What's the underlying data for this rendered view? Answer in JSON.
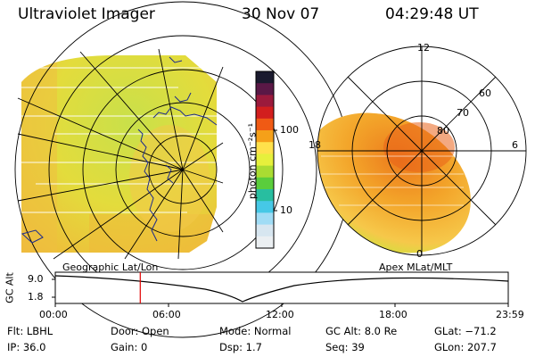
{
  "header": {
    "instrument": "Ultraviolet Imager",
    "date": "30 Nov 07",
    "time": "04:29:48 UT"
  },
  "colorbar": {
    "unit_label": "photon cm⁻²s⁻¹",
    "tick_labels": [
      "100",
      "10"
    ],
    "colors": [
      "#1a1a2e",
      "#5a1846",
      "#9b1a3c",
      "#d21e1e",
      "#f05a14",
      "#f5a019",
      "#ffe14b",
      "#e6f03c",
      "#aadc32",
      "#5acd3c",
      "#28bea0",
      "#46c8e6",
      "#a0dcf5",
      "#d7e6f0",
      "#ebeff2"
    ]
  },
  "geo_map": {
    "label": "Geographic Lat/Lon"
  },
  "polar_plot": {
    "label": "Apex MLat/MLT",
    "mlt_labels": [
      "12",
      "18",
      "6",
      "0"
    ],
    "lat_labels": [
      "60",
      "70",
      "80"
    ]
  },
  "altitude_plot": {
    "y_label": "GC Alt",
    "y_ticks": [
      "9.0",
      "1.8"
    ],
    "x_ticks": [
      "00:00",
      "06:00",
      "12:00",
      "18:00",
      "23:59"
    ],
    "marker_time_hours": 4.5,
    "marker_color": "#e00000"
  },
  "status": {
    "flt": "Flt: LBHL",
    "ip": "IP: 36.0",
    "door": "Door: Open",
    "gain": "Gain:  0",
    "mode": "Mode: Normal",
    "dsp": "Dsp:     1.7",
    "gc_alt": "GC Alt: 8.0 Re",
    "seq": "Seq: 39",
    "glat": "GLat: −71.2",
    "glon": "GLon: 207.7"
  }
}
